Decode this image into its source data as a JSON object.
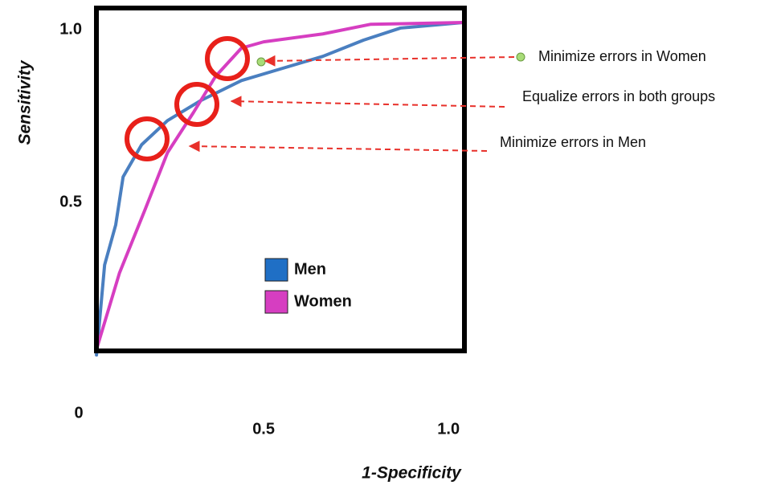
{
  "chart_data": {
    "type": "line",
    "x_label": "1-Specificity",
    "y_label": "Sensitivity",
    "xlim": [
      0,
      1.043
    ],
    "ylim": [
      0,
      1.063
    ],
    "xticks": [
      0,
      0.5,
      {
        "value": 1,
        "label": "1.0"
      }
    ],
    "yticks": [
      0.5,
      {
        "value": 1,
        "label": "1.0"
      }
    ],
    "series": [
      {
        "name": "Men",
        "color": "#4a7fc0",
        "legend_color": "#1f6fc5",
        "x": [
          0.048,
          0.07,
          0.1,
          0.12,
          0.17,
          0.24,
          0.33,
          0.44,
          0.55,
          0.66,
          0.77,
          0.87,
          1.04
        ],
        "values": [
          0.058,
          0.319,
          0.435,
          0.574,
          0.667,
          0.737,
          0.795,
          0.853,
          0.888,
          0.923,
          0.97,
          1.005,
          1.021
        ]
      },
      {
        "name": "Women",
        "color": "#d63ec1",
        "legend_color": "#d63ec1",
        "x": [
          0.048,
          0.11,
          0.18,
          0.24,
          0.31,
          0.37,
          0.44,
          0.5,
          0.66,
          0.79,
          1.04
        ],
        "values": [
          0.074,
          0.295,
          0.481,
          0.644,
          0.76,
          0.865,
          0.947,
          0.965,
          0.988,
          1.016,
          1.021
        ]
      }
    ],
    "annotations": [
      "Minimize errors in Women",
      "Equalize errors in both groups",
      "Minimize errors in Men"
    ]
  }
}
